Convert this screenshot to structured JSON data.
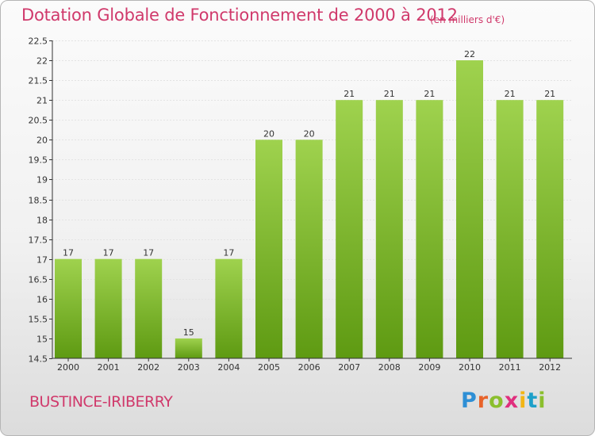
{
  "header": {
    "title": "Dotation Globale de Fonctionnement de 2000 à 2012",
    "unit": "(en milliers d'€)"
  },
  "footer": {
    "commune": "BUSTINCE-IRIBERRY",
    "logo_letters": [
      "P",
      "r",
      "o",
      "x",
      "i",
      "t",
      "i"
    ],
    "logo_colors": [
      "#2e8fd5",
      "#e8632a",
      "#8bbf2e",
      "#e02f7e",
      "#f2b515",
      "#1ea0c9",
      "#8bbf2e"
    ]
  },
  "chart_data": {
    "type": "bar",
    "categories": [
      "2000",
      "2001",
      "2002",
      "2003",
      "2004",
      "2005",
      "2006",
      "2007",
      "2008",
      "2009",
      "2010",
      "2011",
      "2012"
    ],
    "values": [
      17,
      17,
      17,
      15,
      17,
      20,
      20,
      21,
      21,
      21,
      22,
      21,
      21
    ],
    "data_labels": [
      "17",
      "17",
      "17",
      "15",
      "17",
      "20",
      "20",
      "21",
      "21",
      "21",
      "22",
      "21",
      "21"
    ],
    "ylim": [
      14.5,
      22.5
    ],
    "yticks": [
      14.5,
      15,
      15.5,
      16,
      16.5,
      17,
      17.5,
      18,
      18.5,
      19,
      19.5,
      20,
      20.5,
      21,
      21.5,
      22,
      22.5
    ],
    "ytick_labels": [
      "14.5",
      "15",
      "15.5",
      "16",
      "16.5",
      "17",
      "17.5",
      "18",
      "18.5",
      "19",
      "19.5",
      "20",
      "20.5",
      "21",
      "21.5",
      "22",
      "22.5"
    ],
    "grid": true,
    "bar_color_top": "#9fd24e",
    "bar_color_bottom": "#5e9a12"
  }
}
